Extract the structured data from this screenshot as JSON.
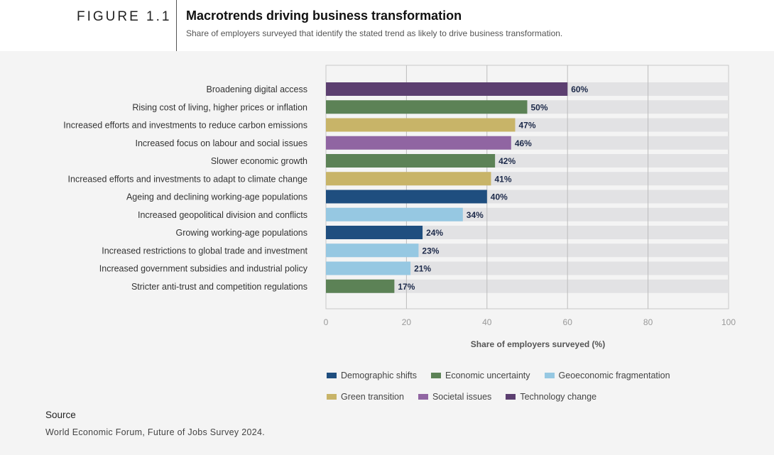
{
  "figure": {
    "label": "FIGURE 1.1",
    "title": "Macrotrends driving business transformation",
    "subtitle": "Share of employers surveyed that identify the stated trend as likely to drive business transformation."
  },
  "colors": {
    "Demographic shifts": "#1f4e7f",
    "Economic uncertainty": "#5c8256",
    "Geoeconomic fragmentation": "#96c8e2",
    "Green transition": "#c8b468",
    "Societal issues": "#9065a2",
    "Technology change": "#5c3f70",
    "track": "#e2e2e4"
  },
  "chart_data": {
    "type": "bar",
    "orientation": "horizontal",
    "categories": [
      "Broadening digital access",
      "Rising cost of living, higher prices or inflation",
      "Increased efforts and investments to reduce carbon emissions",
      "Increased focus on labour and social issues",
      "Slower economic growth",
      "Increased efforts and investments to adapt to climate change",
      "Ageing and declining working-age populations",
      "Increased geopolitical division and conflicts",
      "Growing working-age populations",
      "Increased restrictions to global trade and investment",
      "Increased government subsidies and industrial policy",
      "Stricter anti-trust and competition regulations"
    ],
    "values": [
      60,
      50,
      47,
      46,
      42,
      41,
      40,
      34,
      24,
      23,
      21,
      17
    ],
    "value_labels": [
      "60%",
      "50%",
      "47%",
      "46%",
      "42%",
      "41%",
      "40%",
      "34%",
      "24%",
      "23%",
      "21%",
      "17%"
    ],
    "groups": [
      "Technology change",
      "Economic uncertainty",
      "Green transition",
      "Societal issues",
      "Economic uncertainty",
      "Green transition",
      "Demographic shifts",
      "Geoeconomic fragmentation",
      "Demographic shifts",
      "Geoeconomic fragmentation",
      "Geoeconomic fragmentation",
      "Economic uncertainty"
    ],
    "xlim": [
      0,
      100
    ],
    "xticks": [
      0,
      20,
      40,
      60,
      80,
      100
    ],
    "xlabel": "Share of employers surveyed (%)",
    "ylabel": "",
    "grid": true,
    "legend_position": "bottom",
    "legend": [
      "Demographic shifts",
      "Economic uncertainty",
      "Geoeconomic fragmentation",
      "Green transition",
      "Societal issues",
      "Technology change"
    ]
  },
  "source": {
    "label": "Source",
    "text": "World Economic Forum, Future of Jobs Survey 2024."
  }
}
